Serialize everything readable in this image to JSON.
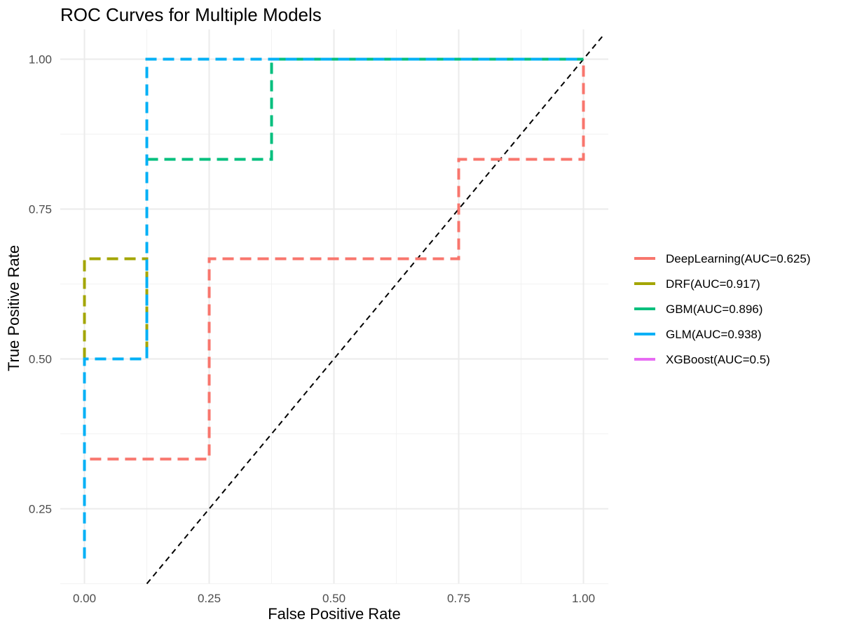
{
  "chart_data": {
    "type": "line",
    "title": "ROC Curves for Multiple Models",
    "xlabel": "False Positive Rate",
    "ylabel": "True Positive Rate",
    "xlim": [
      -0.05,
      1.05
    ],
    "ylim": [
      0.125,
      1.04
    ],
    "x_ticks": [
      0,
      0.25,
      0.5,
      0.75,
      1
    ],
    "x_tick_labels": [
      "0.00",
      "0.25",
      "0.50",
      "0.75",
      "1.00"
    ],
    "y_ticks": [
      0.25,
      0.5,
      0.75,
      1
    ],
    "y_tick_labels": [
      "0.25",
      "0.50",
      "0.75",
      "1.00"
    ],
    "grid": true,
    "legend_position": "right",
    "diagonal_reference": true,
    "series": [
      {
        "name": "DeepLearning(AUC=0.625)",
        "color": "#F8766D",
        "x": [
          0,
          0,
          0.25,
          0.25,
          0.75,
          0.75,
          1,
          1
        ],
        "y": [
          0.167,
          0.333,
          0.333,
          0.667,
          0.667,
          0.833,
          0.833,
          1
        ]
      },
      {
        "name": "DRF(AUC=0.917)",
        "color": "#A3A500",
        "x": [
          0,
          0,
          0.125,
          0.125
        ],
        "y": [
          0.5,
          0.667,
          0.667,
          0.5
        ]
      },
      {
        "name": "GBM(AUC=0.896)",
        "color": "#00BF7D",
        "x": [
          0.125,
          0.125,
          0.375,
          0.375,
          1
        ],
        "y": [
          0.833,
          0.833,
          0.833,
          1,
          1
        ]
      },
      {
        "name": "GLM(AUC=0.938)",
        "color": "#00B0F6",
        "x": [
          0,
          0,
          0.125,
          0.125,
          1
        ],
        "y": [
          0.167,
          0.5,
          0.5,
          1,
          1
        ]
      },
      {
        "name": "XGBoost(AUC=0.5)",
        "color": "#E76BF3",
        "x": [],
        "y": []
      }
    ]
  }
}
